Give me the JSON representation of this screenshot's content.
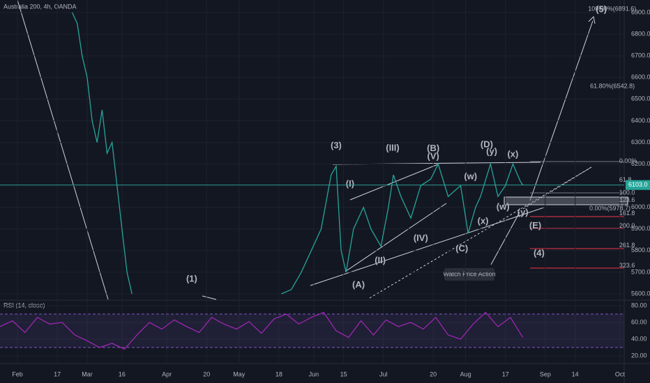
{
  "header": {
    "title": "Australia 200, 4h, OANDA",
    "last_price": {
      "value": 6103.0,
      "label": "6103.0"
    }
  },
  "chart_data": [
    {
      "type": "line",
      "color": "#26a69a",
      "x": [
        22,
        24,
        26,
        28,
        30,
        32,
        34,
        36,
        38,
        40,
        42,
        44,
        46,
        48,
        106,
        110,
        114,
        118,
        122,
        126,
        128,
        130,
        132,
        135,
        139,
        142,
        146,
        149,
        151,
        154,
        158,
        162,
        166,
        169,
        173,
        176,
        178,
        181,
        184,
        186,
        190,
        193,
        196,
        199,
        202,
        203
      ],
      "values": [
        6900,
        6850,
        6700,
        6600,
        6400,
        6300,
        6450,
        6250,
        6300,
        6100,
        5900,
        5700,
        5600,
        null,
        5600,
        5620,
        5700,
        5800,
        5900,
        6150,
        6190,
        5800,
        5700,
        5900,
        6000,
        5900,
        5820,
        6000,
        6150,
        6050,
        5950,
        6100,
        6130,
        6200,
        6050,
        6080,
        6100,
        5880,
        6000,
        6050,
        6200,
        6050,
        6100,
        6200,
        6120,
        6103
      ],
      "xlim": [
        -7,
        243.7
      ],
      "ylim": [
        5574.3,
        6957.9
      ],
      "xticks": [
        {
          "value": 0,
          "label": "Feb"
        },
        {
          "value": 16,
          "label": "17"
        },
        {
          "value": 28,
          "label": "Mar"
        },
        {
          "value": 42,
          "label": "16"
        },
        {
          "value": 60,
          "label": "Apr"
        },
        {
          "value": 76,
          "label": "20"
        },
        {
          "value": 89,
          "label": "May"
        },
        {
          "value": 105,
          "label": "18"
        },
        {
          "value": 119,
          "label": "Jun"
        },
        {
          "value": 131,
          "label": "15"
        },
        {
          "value": 147,
          "label": "Jul"
        },
        {
          "value": 167,
          "label": "20"
        },
        {
          "value": 180,
          "label": "Aug"
        },
        {
          "value": 196,
          "label": "17"
        },
        {
          "value": 212,
          "label": "Sep"
        },
        {
          "value": 224,
          "label": "14"
        },
        {
          "value": 242,
          "label": "Oct"
        }
      ],
      "yticks": [
        {
          "value": 5600,
          "label": "5600.0"
        },
        {
          "value": 5700,
          "label": "5700.0"
        },
        {
          "value": 5800,
          "label": "5800.0"
        },
        {
          "value": 5900,
          "label": "5900.0"
        },
        {
          "value": 6000,
          "label": "6000.0"
        },
        {
          "value": 6100,
          "label": "6100.0"
        },
        {
          "value": 6200,
          "label": "6200.0"
        },
        {
          "value": 6300,
          "label": "6300.0"
        },
        {
          "value": 6400,
          "label": "6400.0"
        },
        {
          "value": 6500,
          "label": "6500.0"
        },
        {
          "value": 6600,
          "label": "6600.0"
        },
        {
          "value": 6700,
          "label": "6700.0"
        },
        {
          "value": 6800,
          "label": "6800.0"
        },
        {
          "value": 6900,
          "label": "6900.0"
        }
      ],
      "annotations": [
        {
          "text": "(5)",
          "color": "#ffffff",
          "x": 234.5,
          "y": 6913
        },
        {
          "text": "(3)",
          "color": "#ffffff",
          "x": 128,
          "y": 6283
        },
        {
          "text": "(1)",
          "color": "#ffffff",
          "x": 70,
          "y": 5668
        },
        {
          "text": "(4)",
          "color": "#ffffff",
          "x": 209.5,
          "y": 5787
        },
        {
          "text": "(A)",
          "color": "#2962ff",
          "x": 137,
          "y": 5640
        },
        {
          "text": "(B)",
          "color": "#2962ff",
          "x": 167,
          "y": 6270
        },
        {
          "text": "(C)",
          "color": "#2962ff",
          "x": 178.5,
          "y": 5807
        },
        {
          "text": "(D)",
          "color": "#2962ff",
          "x": 188.5,
          "y": 6289
        },
        {
          "text": "(E)",
          "color": "#2962ff",
          "x": 208,
          "y": 5913
        },
        {
          "text": "(I)",
          "color": "#f23645",
          "x": 133.6,
          "y": 6106
        },
        {
          "text": "(II)",
          "color": "#f23645",
          "x": 145.7,
          "y": 5752
        },
        {
          "text": "(III)",
          "color": "#f23645",
          "x": 150.7,
          "y": 6273
        },
        {
          "text": "(IV)",
          "color": "#f23645",
          "x": 162,
          "y": 5855
        },
        {
          "text": "(V)",
          "color": "#f23645",
          "x": 167,
          "y": 6234
        },
        {
          "text": "(w)",
          "color": "#f23645",
          "x": 182,
          "y": 6141
        },
        {
          "text": "(y)",
          "color": "#f23645",
          "x": 190.5,
          "y": 6257
        },
        {
          "text": "(x)",
          "color": "#f23645",
          "x": 199,
          "y": 6244
        },
        {
          "text": "(w)",
          "color": "#f23645",
          "x": 195,
          "y": 6000
        },
        {
          "text": "(x)",
          "color": "#f23645",
          "x": 187,
          "y": 5935
        },
        {
          "text": "(y)",
          "color": "#f23645",
          "x": 203,
          "y": 5974
        }
      ],
      "fib_labels": [
        {
          "text": "0.00%",
          "color": "#b2b5be",
          "x": 241.7,
          "y": 6212
        },
        {
          "text": "61.8",
          "color": "#b2b5be",
          "x": 241.7,
          "y": 6125
        },
        {
          "text": "100.0",
          "color": "#b2b5be",
          "x": 241.7,
          "y": 6067
        },
        {
          "text": "123.6",
          "color": "#b2b5be",
          "x": 241.7,
          "y": 6032
        },
        {
          "text": "161.8",
          "color": "#f23645",
          "x": 241.7,
          "y": 5971
        },
        {
          "text": "200.0",
          "color": "#f23645",
          "x": 241.7,
          "y": 5913
        },
        {
          "text": "261.8",
          "color": "#f23645",
          "x": 241.7,
          "y": 5823
        },
        {
          "text": "323.6",
          "color": "#f23645",
          "x": 241.7,
          "y": 5730
        },
        {
          "text": "0.00%(5978.7)",
          "color": "#b2b5be",
          "x": 229.7,
          "y": 5993
        },
        {
          "text": "61.80%(6542.8)",
          "color": "#4caf50",
          "x": 230,
          "y": 6559
        },
        {
          "text": "100.00%(6891.6)",
          "color": "#4caf50",
          "x": 229.2,
          "y": 6915
        }
      ],
      "callout": "Watch Price Action"
    },
    {
      "type": "line",
      "title": "RSI (14, close)",
      "color": "#9c27b0",
      "x": [
        -7,
        -2,
        3,
        8,
        13,
        18,
        23,
        28,
        33,
        38,
        43,
        48,
        53,
        58,
        63,
        68,
        73,
        78,
        83,
        88,
        93,
        98,
        103,
        108,
        113,
        118,
        123,
        128,
        133,
        138,
        143,
        148,
        153,
        158,
        163,
        168,
        173,
        178,
        183,
        188,
        193,
        198,
        203
      ],
      "values": [
        55,
        62,
        48,
        66,
        58,
        60,
        45,
        38,
        30,
        35,
        28,
        45,
        60,
        52,
        63,
        55,
        48,
        66,
        58,
        52,
        61,
        47,
        64,
        70,
        58,
        66,
        72,
        50,
        42,
        62,
        45,
        63,
        55,
        60,
        52,
        66,
        45,
        40,
        58,
        72,
        55,
        66,
        42
      ],
      "xlim": [
        -7,
        243.7
      ],
      "ylim": [
        12.5,
        85.8
      ],
      "yticks": [
        {
          "value": 20,
          "label": "20.00"
        },
        {
          "value": 40,
          "label": "40.00"
        },
        {
          "value": 60,
          "label": "60.00"
        },
        {
          "value": 80,
          "label": "80.00"
        }
      ],
      "bands": [
        30,
        70
      ]
    }
  ]
}
